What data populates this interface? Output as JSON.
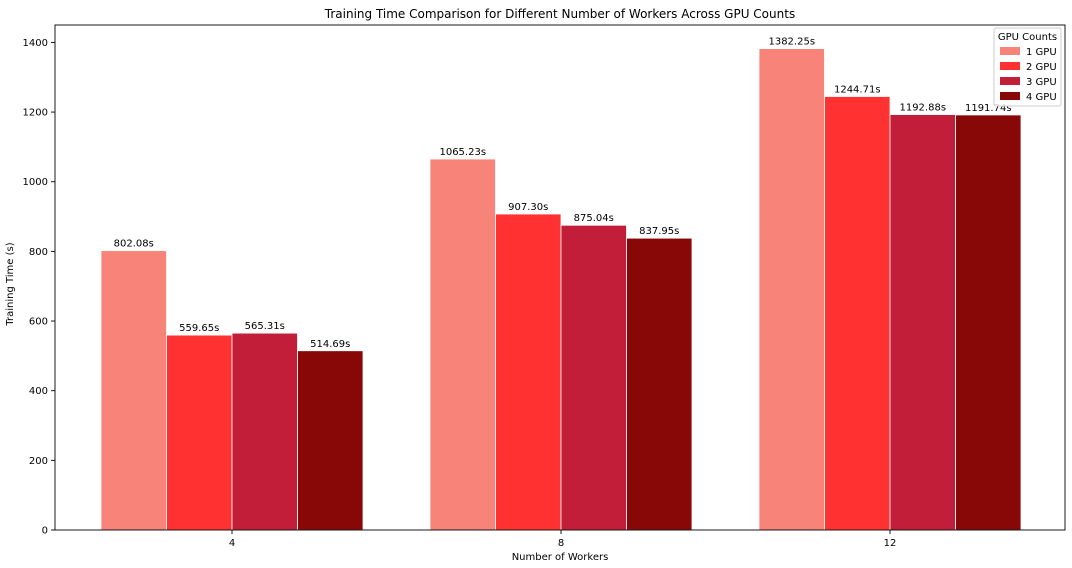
{
  "chart_data": {
    "type": "bar",
    "title": "Training Time Comparison for Different Number of Workers Across GPU Counts",
    "xlabel": "Number of Workers",
    "ylabel": "Training Time (s)",
    "categories": [
      "4",
      "8",
      "12"
    ],
    "ylim": [
      0,
      1450
    ],
    "yticks": [
      0,
      200,
      400,
      600,
      800,
      1000,
      1200,
      1400
    ],
    "grid": false,
    "legend": {
      "title": "GPU Counts",
      "placement": "top-right"
    },
    "series": [
      {
        "name": "1 GPU",
        "color": "#f88379",
        "values": [
          802.08,
          1065.23,
          1382.25
        ],
        "labels": [
          "802.08s",
          "1065.23s",
          "1382.25s"
        ]
      },
      {
        "name": "2 GPU",
        "color": "#ff3131",
        "values": [
          559.65,
          907.3,
          1244.71
        ],
        "labels": [
          "559.65s",
          "907.30s",
          "1244.71s"
        ]
      },
      {
        "name": "3 GPU",
        "color": "#c21e3a",
        "values": [
          565.31,
          875.04,
          1192.88
        ],
        "labels": [
          "565.31s",
          "875.04s",
          "1192.88s"
        ]
      },
      {
        "name": "4 GPU",
        "color": "#880808",
        "values": [
          514.69,
          837.95,
          1191.74
        ],
        "labels": [
          "514.69s",
          "837.95s",
          "1191.74s"
        ]
      }
    ]
  }
}
